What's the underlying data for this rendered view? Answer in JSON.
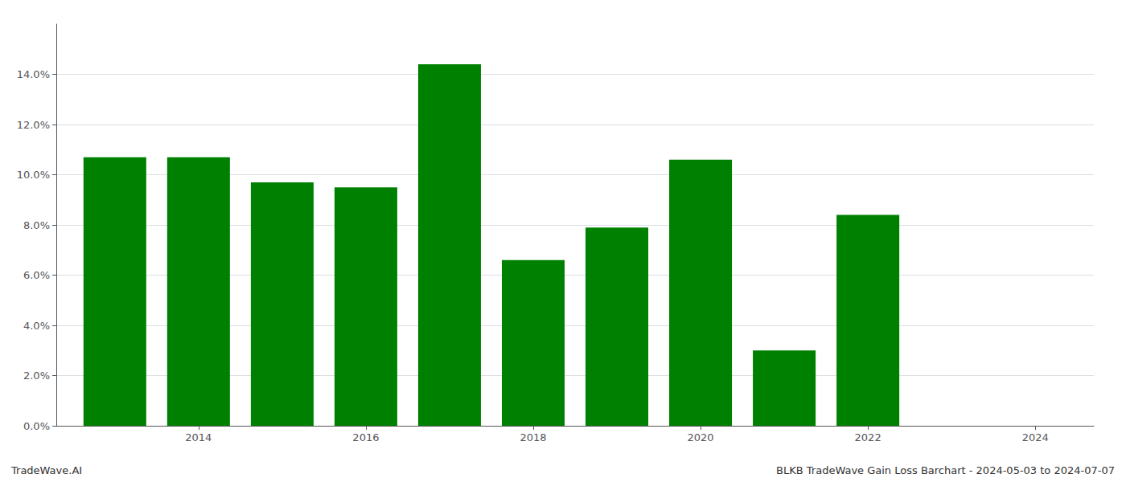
{
  "chart_data": {
    "type": "bar",
    "x": [
      2013,
      2014,
      2015,
      2016,
      2017,
      2018,
      2019,
      2020,
      2021,
      2022,
      2023
    ],
    "values": [
      0.107,
      0.107,
      0.097,
      0.095,
      0.144,
      0.066,
      0.079,
      0.106,
      0.03,
      0.084,
      0.0
    ],
    "color": "#008000",
    "xlim": [
      2012.3,
      2024.7
    ],
    "xticks": [
      2014,
      2016,
      2018,
      2020,
      2022,
      2024
    ],
    "ylim": [
      0,
      0.16
    ],
    "yticks": [
      {
        "value": 0.0,
        "label": "0.0%"
      },
      {
        "value": 0.02,
        "label": "2.0%"
      },
      {
        "value": 0.04,
        "label": "4.0%"
      },
      {
        "value": 0.06,
        "label": "6.0%"
      },
      {
        "value": 0.08,
        "label": "8.0%"
      },
      {
        "value": 0.1,
        "label": "10.0%"
      },
      {
        "value": 0.12,
        "label": "12.0%"
      },
      {
        "value": 0.14,
        "label": "14.0%"
      }
    ],
    "grid": true,
    "annotations": [
      "TradeWave.AI",
      "BLKB TradeWave Gain Loss Barchart - 2024-05-03 to 2024-07-07"
    ]
  }
}
